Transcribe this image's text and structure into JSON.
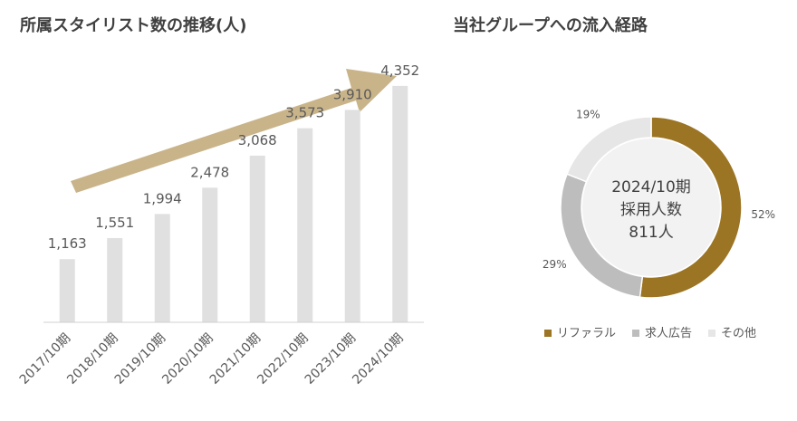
{
  "chart_data": [
    {
      "type": "bar",
      "title": "所属スタイリスト数の推移(人)",
      "categories": [
        "2017/10期",
        "2018/10期",
        "2019/10期",
        "2020/10期",
        "2021/10期",
        "2022/10期",
        "2023/10期",
        "2024/10期"
      ],
      "values": [
        1163,
        1551,
        1994,
        2478,
        3068,
        3573,
        3910,
        4352
      ],
      "value_labels": [
        "1,163",
        "1,551",
        "1,994",
        "2,478",
        "3,068",
        "3,573",
        "3,910",
        "4,352"
      ],
      "ylim": [
        0,
        5600
      ],
      "grid": false,
      "xlabel": "",
      "ylabel": "",
      "annotation": "upward-trend-arrow",
      "colors": {
        "bar": "#e0e0e0",
        "arrow": "#c9b48a"
      }
    },
    {
      "type": "pie",
      "variant": "donut",
      "title": "当社グループへの流入経路",
      "center_label": [
        "2024/10期",
        "採用人数",
        "811人"
      ],
      "labels": [
        "リファラル",
        "求人広告",
        "その他"
      ],
      "values": [
        52,
        29,
        19
      ],
      "value_labels": [
        "52%",
        "29%",
        "19%"
      ],
      "colors": [
        "#9b7424",
        "#bdbdbd",
        "#e6e6e6"
      ],
      "legend_position": "bottom"
    }
  ]
}
